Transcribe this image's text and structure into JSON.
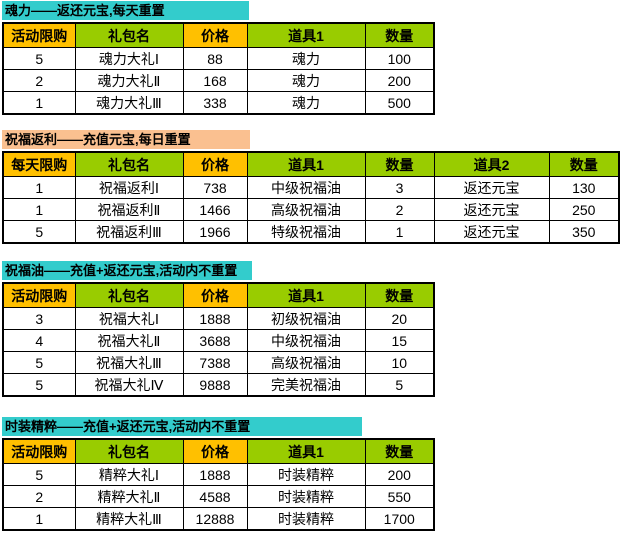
{
  "colors": {
    "cyan": "#33CCCC",
    "peach": "#FAC090",
    "yellow": "#FFC000",
    "green": "#99CC00",
    "cell_bg": "#FFFFFF",
    "border": "#000000",
    "text": "#000000"
  },
  "sections": [
    {
      "key": "soul-power",
      "title": "魂力——返还元宝,每天重置",
      "title_color": "cyan",
      "columns": [
        {
          "key": "limit",
          "label": "活动限购",
          "bg": "yellow"
        },
        {
          "key": "package-name",
          "label": "礼包名",
          "bg": "green"
        },
        {
          "key": "price",
          "label": "价格",
          "bg": "yellow"
        },
        {
          "key": "item1",
          "label": "道具1",
          "bg": "green"
        },
        {
          "key": "qty1",
          "label": "数量",
          "bg": "green"
        }
      ],
      "rows": [
        [
          "5",
          "魂力大礼Ⅰ",
          "88",
          "魂力",
          "100"
        ],
        [
          "2",
          "魂力大礼Ⅱ",
          "168",
          "魂力",
          "200"
        ],
        [
          "1",
          "魂力大礼Ⅲ",
          "338",
          "魂力",
          "500"
        ]
      ]
    },
    {
      "key": "blessing-rebate",
      "title": "祝福返利——充值元宝,每日重置",
      "title_color": "peach",
      "columns": [
        {
          "key": "limit",
          "label": "每天限购",
          "bg": "yellow"
        },
        {
          "key": "package-name",
          "label": "礼包名",
          "bg": "green"
        },
        {
          "key": "price",
          "label": "价格",
          "bg": "yellow"
        },
        {
          "key": "item1",
          "label": "道具1",
          "bg": "green"
        },
        {
          "key": "qty1",
          "label": "数量",
          "bg": "green"
        },
        {
          "key": "item2",
          "label": "道具2",
          "bg": "green"
        },
        {
          "key": "qty2",
          "label": "数量",
          "bg": "green"
        }
      ],
      "rows": [
        [
          "1",
          "祝福返利Ⅰ",
          "738",
          "中级祝福油",
          "3",
          "返还元宝",
          "130"
        ],
        [
          "1",
          "祝福返利Ⅱ",
          "1466",
          "高级祝福油",
          "2",
          "返还元宝",
          "250"
        ],
        [
          "5",
          "祝福返利Ⅲ",
          "1966",
          "特级祝福油",
          "1",
          "返还元宝",
          "350"
        ]
      ]
    },
    {
      "key": "blessing-oil",
      "title": "祝福油——充值+返还元宝,活动内不重置",
      "title_color": "cyan",
      "columns": [
        {
          "key": "limit",
          "label": "活动限购",
          "bg": "yellow"
        },
        {
          "key": "package-name",
          "label": "礼包名",
          "bg": "green"
        },
        {
          "key": "price",
          "label": "价格",
          "bg": "yellow"
        },
        {
          "key": "item1",
          "label": "道具1",
          "bg": "green"
        },
        {
          "key": "qty1",
          "label": "数量",
          "bg": "green"
        }
      ],
      "rows": [
        [
          "3",
          "祝福大礼Ⅰ",
          "1888",
          "初级祝福油",
          "20"
        ],
        [
          "4",
          "祝福大礼Ⅱ",
          "3688",
          "中级祝福油",
          "15"
        ],
        [
          "5",
          "祝福大礼Ⅲ",
          "7388",
          "高级祝福油",
          "10"
        ],
        [
          "5",
          "祝福大礼Ⅳ",
          "9888",
          "完美祝福油",
          "5"
        ]
      ]
    },
    {
      "key": "fashion-essence",
      "title": "时装精粹——充值+返还元宝,活动内不重置",
      "title_color": "cyan",
      "columns": [
        {
          "key": "limit",
          "label": "活动限购",
          "bg": "yellow"
        },
        {
          "key": "package-name",
          "label": "礼包名",
          "bg": "green"
        },
        {
          "key": "price",
          "label": "价格",
          "bg": "yellow"
        },
        {
          "key": "item1",
          "label": "道具1",
          "bg": "green"
        },
        {
          "key": "qty1",
          "label": "数量",
          "bg": "green"
        }
      ],
      "rows": [
        [
          "5",
          "精粹大礼Ⅰ",
          "1888",
          "时装精粹",
          "200"
        ],
        [
          "2",
          "精粹大礼Ⅱ",
          "4588",
          "时装精粹",
          "550"
        ],
        [
          "1",
          "精粹大礼Ⅲ",
          "12888",
          "时装精粹",
          "1700"
        ]
      ]
    }
  ]
}
